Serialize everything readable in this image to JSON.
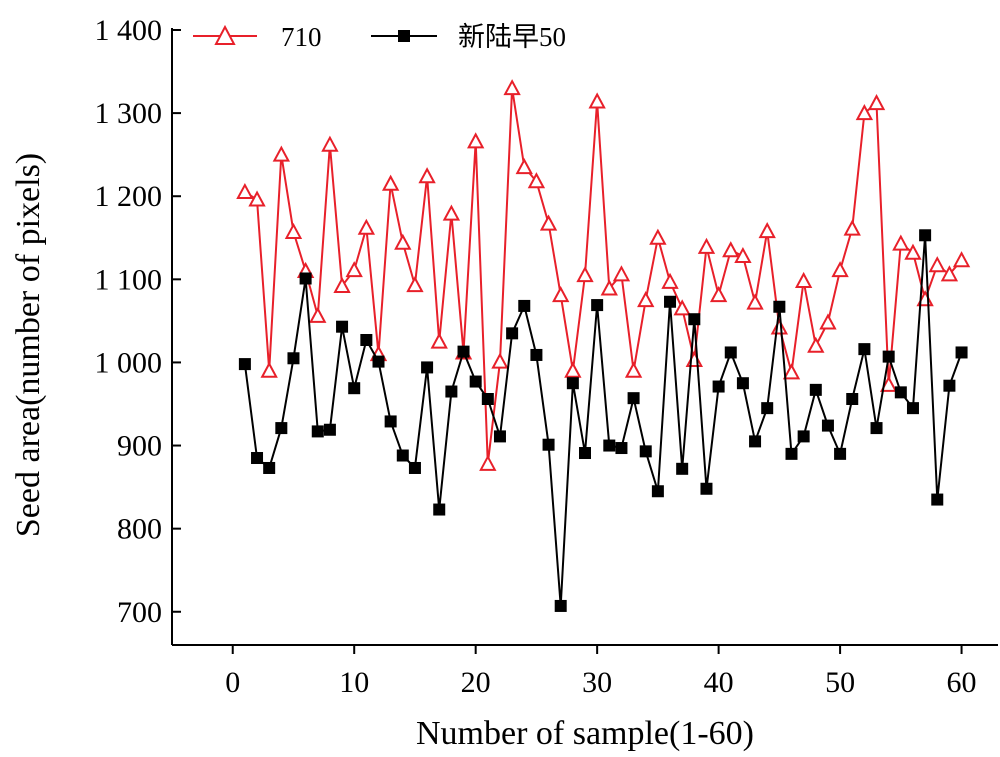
{
  "chart_data": {
    "type": "line",
    "xlabel": "Number of sample(1-60)",
    "ylabel": "Seed area(number of pixels)",
    "xlim": [
      -5,
      63
    ],
    "ylim": [
      660,
      1400
    ],
    "x_ticks": [
      0,
      10,
      20,
      30,
      40,
      50,
      60
    ],
    "x_tick_labels": [
      "0",
      "10",
      "20",
      "30",
      "40",
      "50",
      "60"
    ],
    "y_ticks": [
      700,
      800,
      900,
      1000,
      1100,
      1200,
      1300,
      1400
    ],
    "y_tick_labels": [
      "700",
      "800",
      "900",
      "1 000",
      "1 100",
      "1 200",
      "1 300",
      "1 400"
    ],
    "grid": false,
    "legend_position": "top-left",
    "x": [
      1,
      2,
      3,
      4,
      5,
      6,
      7,
      8,
      9,
      10,
      11,
      12,
      13,
      14,
      15,
      16,
      17,
      18,
      19,
      20,
      21,
      22,
      23,
      24,
      25,
      26,
      27,
      28,
      29,
      30,
      31,
      32,
      33,
      34,
      35,
      36,
      37,
      38,
      39,
      40,
      41,
      42,
      43,
      44,
      45,
      46,
      47,
      48,
      49,
      50,
      51,
      52,
      53,
      54,
      55,
      56,
      57,
      58,
      59,
      60
    ],
    "series": [
      {
        "name": "710",
        "color": "#e8202a",
        "marker": "triangle-open",
        "values": [
          1205,
          1196,
          990,
          1250,
          1157,
          1110,
          1056,
          1262,
          1092,
          1111,
          1162,
          1010,
          1215,
          1144,
          1093,
          1224,
          1025,
          1179,
          1012,
          1266,
          878,
          1001,
          1330,
          1235,
          1218,
          1167,
          1081,
          990,
          1105,
          1314,
          1089,
          1106,
          990,
          1075,
          1150,
          1097,
          1065,
          1003,
          1139,
          1081,
          1135,
          1128,
          1072,
          1158,
          1042,
          988,
          1098,
          1020,
          1048,
          1111,
          1161,
          1300,
          1312,
          973,
          1143,
          1132,
          1076,
          1117,
          1106,
          1123
        ]
      },
      {
        "name": "新陆早50",
        "color": "#000000",
        "marker": "square-filled",
        "values": [
          998,
          885,
          873,
          921,
          1005,
          1101,
          917,
          919,
          1043,
          969,
          1027,
          1001,
          929,
          888,
          873,
          994,
          823,
          965,
          1013,
          977,
          956,
          911,
          1035,
          1068,
          1009,
          901,
          707,
          975,
          891,
          1069,
          900,
          897,
          957,
          893,
          845,
          1073,
          872,
          1052,
          848,
          971,
          1012,
          975,
          905,
          945,
          1067,
          890,
          911,
          967,
          924,
          890,
          956,
          1016,
          921,
          1007,
          964,
          945,
          1153,
          835,
          972,
          1012
        ]
      }
    ]
  }
}
